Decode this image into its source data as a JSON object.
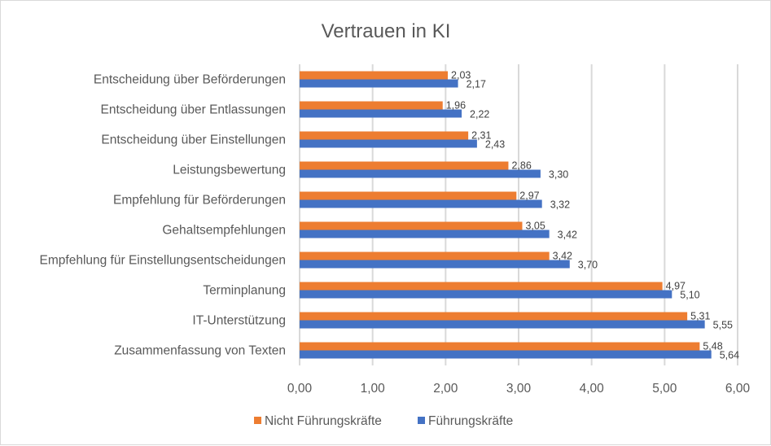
{
  "chart_data": {
    "type": "bar",
    "orientation": "horizontal",
    "title": "Vertrauen in KI",
    "xlabel": "",
    "ylabel": "",
    "xlim": [
      0,
      6
    ],
    "x_ticks": [
      "0,00",
      "1,00",
      "2,00",
      "3,00",
      "4,00",
      "5,00",
      "6,00"
    ],
    "grid": true,
    "legend_position": "bottom",
    "categories": [
      "Entscheidung über Beförderungen",
      "Entscheidung über Entlassungen",
      "Entscheidung über Einstellungen",
      "Leistungsbewertung",
      "Empfehlung für Beförderungen",
      "Gehaltsempfehlungen",
      "Empfehlung für Einstellungsentscheidungen",
      "Terminplanung",
      "IT-Unterstützung",
      "Zusammenfassung von Texten"
    ],
    "series": [
      {
        "name": "Nicht Führungskräfte",
        "color": "#ed7d31",
        "values": [
          2.03,
          1.96,
          2.31,
          2.86,
          2.97,
          3.05,
          3.42,
          4.97,
          5.31,
          5.48
        ],
        "labels": [
          "2,03",
          "1,96",
          "2,31",
          "2,86",
          "2,97",
          "3,05",
          "3,42",
          "4,97",
          "5,31",
          "5,48"
        ]
      },
      {
        "name": "Führungskräfte",
        "color": "#4472c4",
        "values": [
          2.17,
          2.22,
          2.43,
          3.3,
          3.32,
          3.42,
          3.7,
          5.1,
          5.55,
          5.64
        ],
        "labels": [
          "2,17",
          "2,22",
          "2,43",
          "3,30",
          "3,32",
          "3,42",
          "3,70",
          "5,10",
          "5,55",
          "5,64"
        ]
      }
    ]
  }
}
